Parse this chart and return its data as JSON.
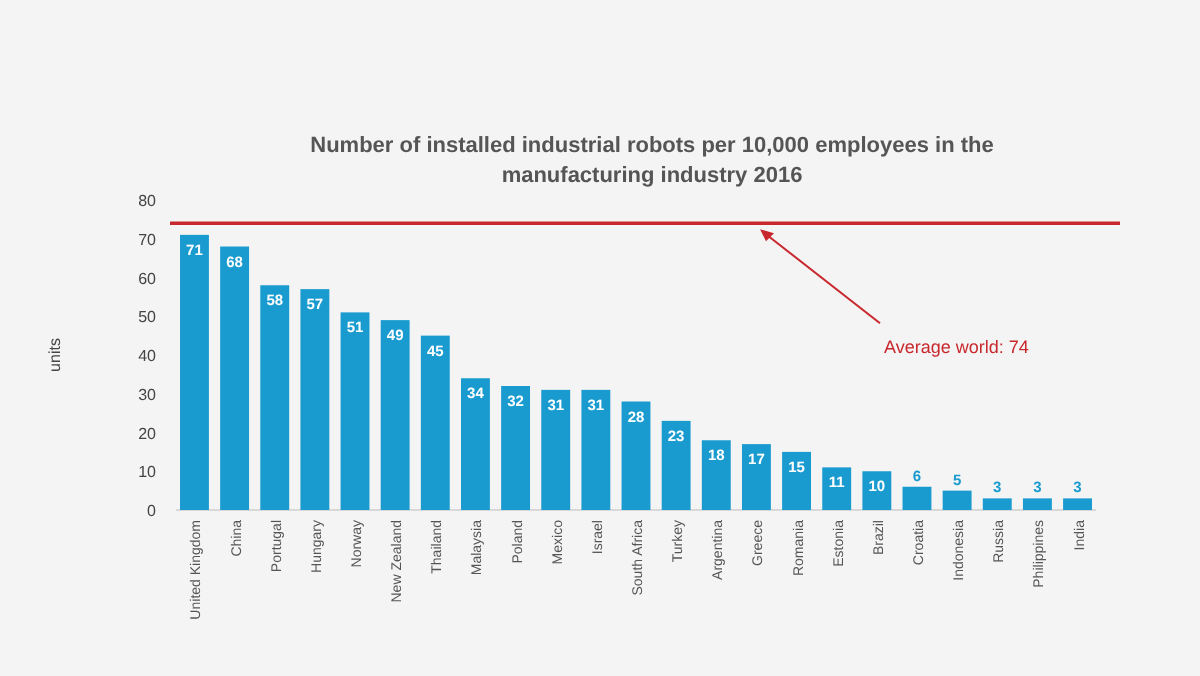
{
  "chart_data": {
    "type": "bar",
    "title": "Number of installed industrial robots per 10,000 employees in the manufacturing industry 2016",
    "ylabel": "units",
    "categories": [
      "United Kingdom",
      "China",
      "Portugal",
      "Hungary",
      "Norway",
      "New Zealand",
      "Thailand",
      "Malaysia",
      "Poland",
      "Mexico",
      "Israel",
      "South Africa",
      "Turkey",
      "Argentina",
      "Greece",
      "Romania",
      "Estonia",
      "Brazil",
      "Croatia",
      "Indonesia",
      "Russia",
      "Philippines",
      "India"
    ],
    "values": [
      71,
      68,
      58,
      57,
      51,
      49,
      45,
      34,
      32,
      31,
      31,
      28,
      23,
      18,
      17,
      15,
      11,
      10,
      6,
      5,
      3,
      3,
      3
    ],
    "color": "#1a9bd0",
    "ylim": [
      0,
      80
    ],
    "yticks": [
      0,
      10,
      20,
      30,
      40,
      50,
      60,
      70,
      80
    ],
    "grid": false,
    "data_labels": true,
    "ref_lines": [
      {
        "axis": "y",
        "value": 74,
        "label": "Average world: 74",
        "color": "#c8282d"
      }
    ]
  }
}
